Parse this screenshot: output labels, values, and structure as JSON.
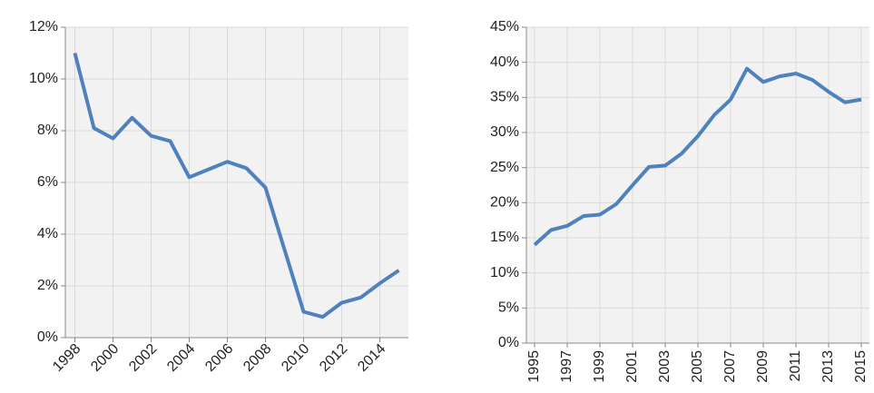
{
  "chart_data": [
    {
      "type": "line",
      "x": [
        1998,
        1999,
        2000,
        2001,
        2002,
        2003,
        2004,
        2005,
        2006,
        2007,
        2008,
        2009,
        2010,
        2011,
        2012,
        2013,
        2014,
        2015
      ],
      "series": [
        {
          "color": "#4f81bd",
          "values": [
            11.0,
            8.1,
            7.7,
            8.5,
            7.8,
            7.6,
            6.2,
            6.5,
            6.8,
            6.55,
            5.8,
            3.4,
            1.0,
            0.8,
            1.35,
            1.55,
            2.1,
            2.6
          ]
        }
      ],
      "xlim": [
        1997.5,
        2015.5
      ],
      "xticks": [
        1998,
        2000,
        2002,
        2004,
        2006,
        2008,
        2010,
        2012,
        2014
      ],
      "ylim": [
        0,
        12
      ],
      "yticks": [
        {
          "value": 0,
          "label": "0%"
        },
        {
          "value": 2,
          "label": "2%"
        },
        {
          "value": 4,
          "label": "4%"
        },
        {
          "value": 6,
          "label": "6%"
        },
        {
          "value": 8,
          "label": "8%"
        },
        {
          "value": 10,
          "label": "10%"
        },
        {
          "value": 12,
          "label": "12%"
        }
      ],
      "grid": true
    },
    {
      "type": "line",
      "x": [
        1995,
        1996,
        1997,
        1998,
        1999,
        2000,
        2001,
        2002,
        2003,
        2004,
        2005,
        2006,
        2007,
        2008,
        2009,
        2010,
        2011,
        2012,
        2013,
        2014,
        2015
      ],
      "series": [
        {
          "color": "#4f81bd",
          "values": [
            14.0,
            16.1,
            16.7,
            18.1,
            18.3,
            19.8,
            22.5,
            25.1,
            25.3,
            27.0,
            29.5,
            32.5,
            34.7,
            39.1,
            37.2,
            38.0,
            38.4,
            37.5,
            35.8,
            34.3,
            34.7
          ]
        }
      ],
      "xlim": [
        1994.5,
        2015.5
      ],
      "xticks": [
        1995,
        1997,
        1999,
        2001,
        2003,
        2005,
        2007,
        2009,
        2011,
        2013,
        2015
      ],
      "ylim": [
        0,
        45
      ],
      "yticks": [
        {
          "value": 0,
          "label": "0%"
        },
        {
          "value": 5,
          "label": "5%"
        },
        {
          "value": 10,
          "label": "10%"
        },
        {
          "value": 15,
          "label": "15%"
        },
        {
          "value": 20,
          "label": "20%"
        },
        {
          "value": 25,
          "label": "25%"
        },
        {
          "value": 30,
          "label": "30%"
        },
        {
          "value": 35,
          "label": "35%"
        },
        {
          "value": 40,
          "label": "40%"
        },
        {
          "value": 45,
          "label": "45%"
        }
      ],
      "grid": true
    }
  ]
}
